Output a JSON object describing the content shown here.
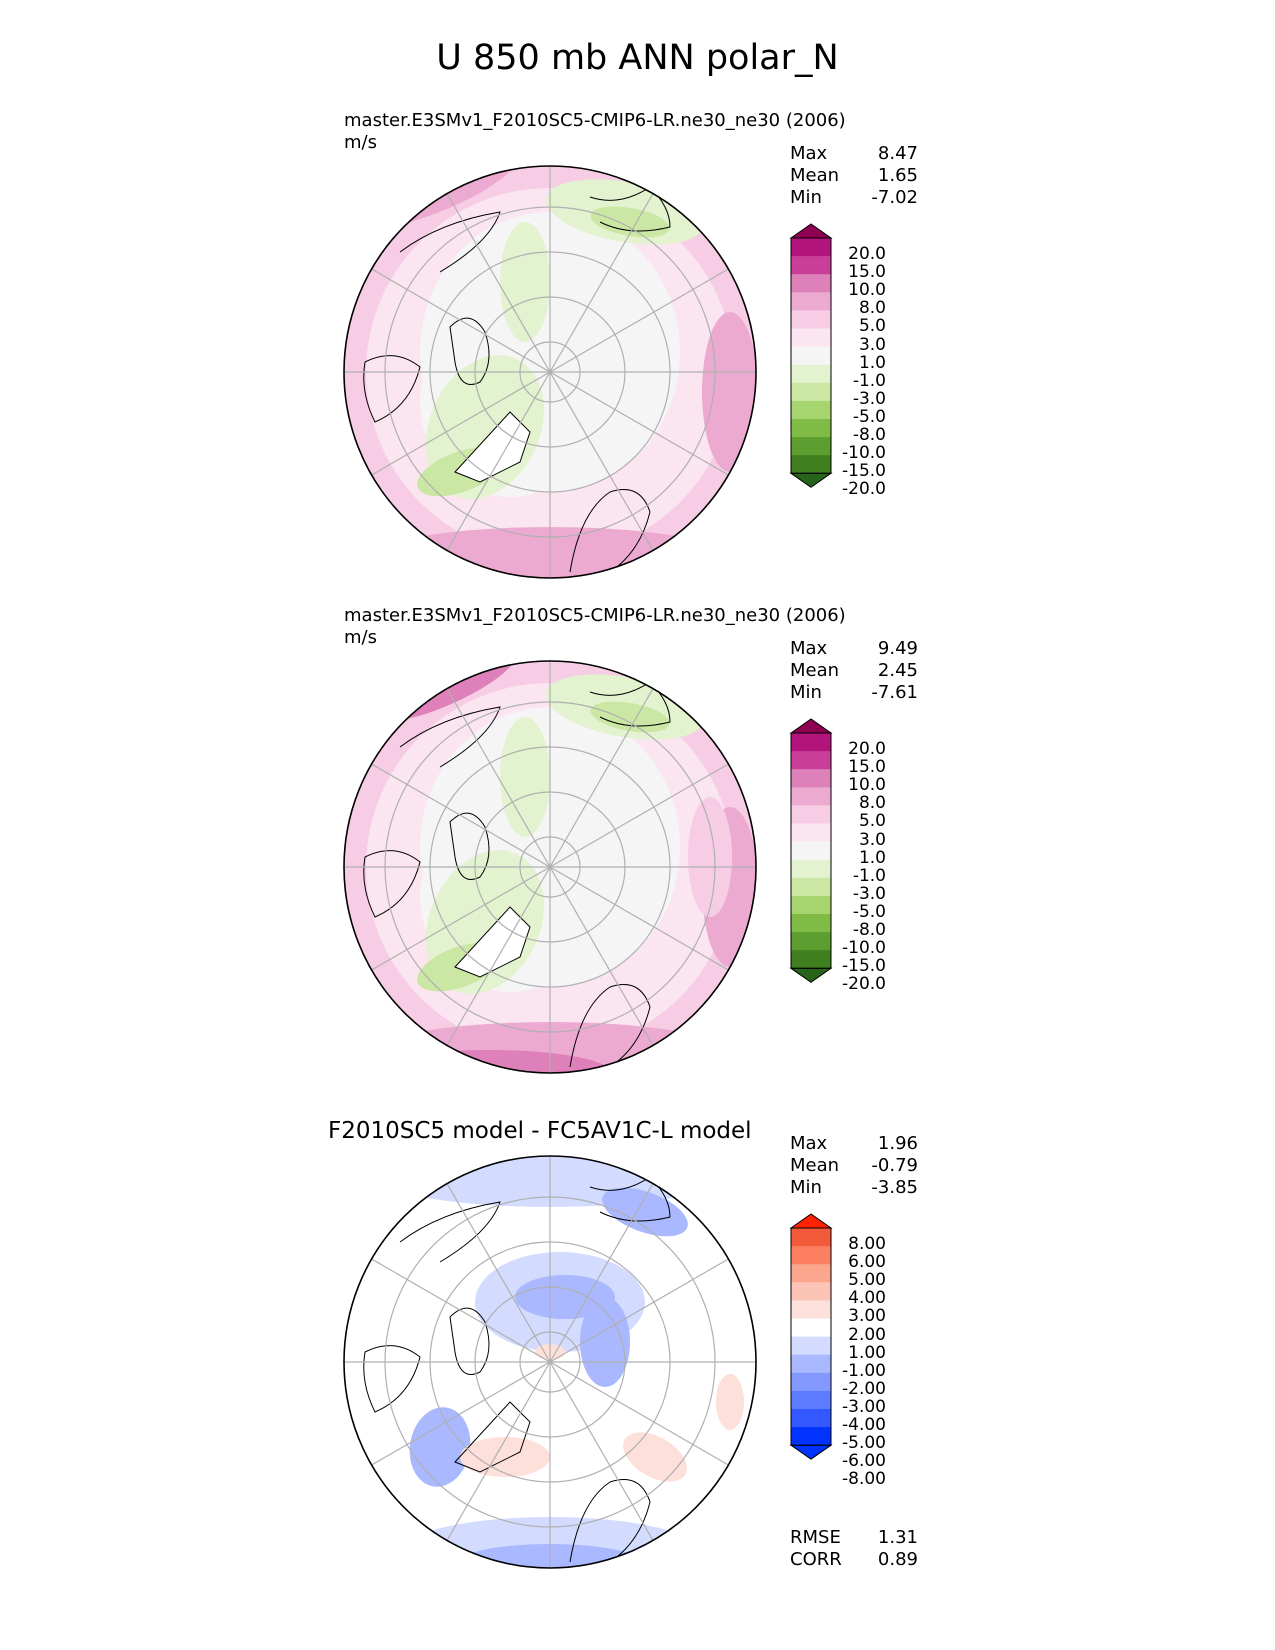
{
  "main_title": "U 850 mb ANN polar_N",
  "colors": {
    "pink_scale": [
      "#276419",
      "#3f7f20",
      "#5c9e2f",
      "#80bb46",
      "#a6d46e",
      "#cbe7a4",
      "#e3f2cf",
      "#f5f5f5",
      "#fbe5f1",
      "#f6cde5",
      "#ecaad1",
      "#de80b9",
      "#c93f97",
      "#b2147c",
      "#8e0152"
    ],
    "diff_scale": [
      "#0033ff",
      "#3358ff",
      "#5c7bff",
      "#8399ff",
      "#a9b8ff",
      "#d3dcff",
      "#ffffff",
      "#fde0da",
      "#fcc4b6",
      "#fca68e",
      "#fb7f60",
      "#f25a3a",
      "#ff2200"
    ],
    "land_outline": "#000000",
    "grid": "#b0b0b0"
  },
  "panels": [
    {
      "title": "master.E3SMv1_F2010SC5-CMIP6-LR.ne30_ne30 (2006)",
      "units": "m/s",
      "stats": [
        {
          "label": "Max",
          "value": "8.47"
        },
        {
          "label": "Mean",
          "value": "1.65"
        },
        {
          "label": "Min",
          "value": "-7.02"
        }
      ],
      "colorbar_ticks": [
        "20.0",
        "15.0",
        "10.0",
        "8.0",
        "5.0",
        "3.0",
        "1.0",
        "-1.0",
        "-3.0",
        "-5.0",
        "-8.0",
        "-10.0",
        "-15.0",
        "-20.0"
      ]
    },
    {
      "title": "master.E3SMv1_F2010SC5-CMIP6-LR.ne30_ne30 (2006)",
      "units": "m/s",
      "stats": [
        {
          "label": "Max",
          "value": "9.49"
        },
        {
          "label": "Mean",
          "value": "2.45"
        },
        {
          "label": "Min",
          "value": "-7.61"
        }
      ],
      "colorbar_ticks": [
        "20.0",
        "15.0",
        "10.0",
        "8.0",
        "5.0",
        "3.0",
        "1.0",
        "-1.0",
        "-3.0",
        "-5.0",
        "-8.0",
        "-10.0",
        "-15.0",
        "-20.0"
      ]
    },
    {
      "title": "F2010SC5 model - FC5AV1C-L model",
      "units": "",
      "stats": [
        {
          "label": "Max",
          "value": "1.96"
        },
        {
          "label": "Mean",
          "value": "-0.79"
        },
        {
          "label": "Min",
          "value": "-3.85"
        }
      ],
      "colorbar_ticks": [
        "8.00",
        "6.00",
        "5.00",
        "4.00",
        "3.00",
        "2.00",
        "1.00",
        "-1.00",
        "-2.00",
        "-3.00",
        "-4.00",
        "-5.00",
        "-6.00",
        "-8.00"
      ],
      "metrics": [
        {
          "label": "RMSE",
          "value": "1.31"
        },
        {
          "label": "CORR",
          "value": "0.89"
        }
      ]
    }
  ],
  "chart_data": [
    {
      "type": "heatmap",
      "projection": "north polar stereographic",
      "title": "master.E3SMv1_F2010SC5-CMIP6-LR.ne30_ne30 (2006)",
      "units": "m/s",
      "max": 8.47,
      "mean": 1.65,
      "min": -7.02,
      "levels": [
        -20,
        -15,
        -10,
        -8,
        -5,
        -3,
        -1,
        1,
        3,
        5,
        8,
        10,
        15,
        20
      ],
      "extend": "both"
    },
    {
      "type": "heatmap",
      "projection": "north polar stereographic",
      "title": "master.E3SMv1_F2010SC5-CMIP6-LR.ne30_ne30 (2006)",
      "units": "m/s",
      "max": 9.49,
      "mean": 2.45,
      "min": -7.61,
      "levels": [
        -20,
        -15,
        -10,
        -8,
        -5,
        -3,
        -1,
        1,
        3,
        5,
        8,
        10,
        15,
        20
      ],
      "extend": "both"
    },
    {
      "type": "heatmap",
      "projection": "north polar stereographic",
      "title": "F2010SC5 model - FC5AV1C-L model",
      "max": 1.96,
      "mean": -0.79,
      "min": -3.85,
      "rmse": 1.31,
      "corr": 0.89,
      "levels": [
        -8,
        -6,
        -5,
        -4,
        -3,
        -2,
        -1,
        1,
        2,
        3,
        4,
        5,
        6,
        8
      ],
      "extend": "max"
    }
  ]
}
